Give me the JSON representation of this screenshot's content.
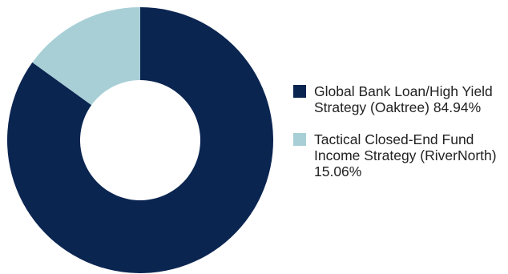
{
  "chart_data": {
    "type": "pie",
    "categories": [
      "Global Bank Loan/High Yield Strategy (Oaktree)",
      "Tactical Closed-End Fund Income Strategy (RiverNorth)"
    ],
    "values": [
      84.94,
      15.06
    ],
    "value_labels": [
      "84.94%",
      "15.06%"
    ],
    "colors": [
      "#0b2551",
      "#a8cfd6"
    ],
    "donut": true,
    "legend_position": "right"
  }
}
